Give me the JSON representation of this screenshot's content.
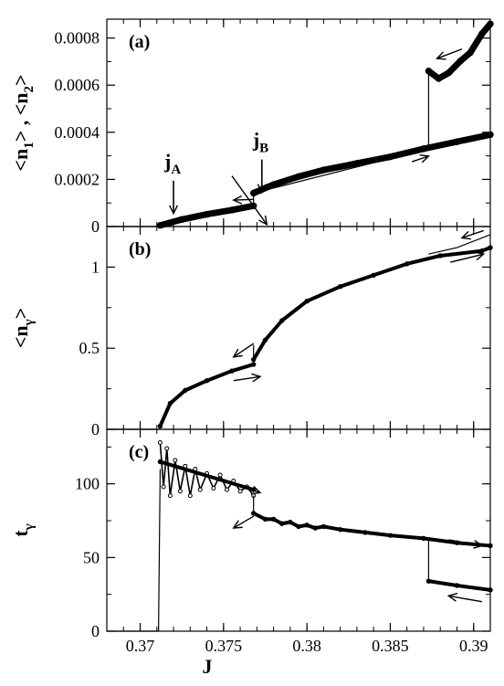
{
  "chart_data": [
    {
      "type": "scatter",
      "panel_label": "(a)",
      "ylabel_parts": [
        "<n",
        "1",
        ">",
        " , ",
        "<n",
        "2",
        ">"
      ],
      "xlim": [
        0.368,
        0.391
      ],
      "ylim": [
        0,
        0.00088
      ],
      "y_ticks": [
        0,
        0.0002,
        0.0004,
        0.0006,
        0.0008
      ],
      "y_tick_labels": [
        "0",
        "0.0002",
        "0.0004",
        "0.0006",
        "0.0008"
      ],
      "annotations": [
        {
          "main": "j",
          "sub": "A",
          "x": 0.372,
          "y": 5.5e-05
        },
        {
          "main": "j",
          "sub": "B",
          "x": 0.3773,
          "y": 0.000145
        }
      ],
      "arrows": [
        {
          "from": [
            0.3755,
            0.000215
          ],
          "to": [
            0.3776,
            8.5e-06
          ],
          "dir": "right"
        },
        {
          "from": [
            0.3768,
            0.000115
          ],
          "to": [
            0.3756,
            0.000112
          ],
          "dir": "left"
        },
        {
          "from": [
            0.3863,
            0.000275
          ],
          "to": [
            0.3873,
            0.000299
          ],
          "dir": "right"
        },
        {
          "from": [
            0.3893,
            0.000753
          ],
          "to": [
            0.3878,
            0.000713
          ],
          "dir": "left"
        }
      ],
      "series": [
        {
          "style": "thin",
          "x": [
            0.368,
            0.3712
          ],
          "y": [
            0,
            0
          ]
        },
        {
          "style": "thick",
          "x": [
            0.3712,
            0.3725,
            0.374,
            0.3755,
            0.3768
          ],
          "y": [
            5e-06,
            3e-05,
            5.2e-05,
            7e-05,
            8.8e-05
          ]
        },
        {
          "style": "thick",
          "x": [
            0.3768,
            0.378,
            0.3795,
            0.381,
            0.383,
            0.385,
            0.387,
            0.389,
            0.391
          ],
          "y": [
            0.000142,
            0.000178,
            0.000212,
            0.00024,
            0.000268,
            0.000296,
            0.00033,
            0.00036,
            0.00039
          ]
        },
        {
          "style": "thick",
          "x": [
            0.3873,
            0.3879,
            0.3885,
            0.3892,
            0.3898,
            0.3905,
            0.391
          ],
          "y": [
            0.00066,
            0.000628,
            0.000652,
            0.000702,
            0.000738,
            0.000818,
            0.00086
          ]
        },
        {
          "style": "thin",
          "x": [
            0.3768,
            0.3768,
            0.3873,
            0.3873
          ],
          "y": [
            8.8e-05,
            0.000142,
            0.00033,
            0.00066
          ]
        }
      ]
    },
    {
      "type": "scatter",
      "panel_label": "(b)",
      "ylabel_parts": [
        "<n",
        "γ",
        ">"
      ],
      "xlim": [
        0.368,
        0.391
      ],
      "ylim": [
        0,
        1.25
      ],
      "y_ticks": [
        0,
        0.5,
        1
      ],
      "y_tick_labels": [
        "0",
        "0.5",
        "1"
      ],
      "arrows": [
        {
          "from": [
            0.3756,
            0.3
          ],
          "to": [
            0.3772,
            0.325
          ],
          "dir": "right"
        },
        {
          "from": [
            0.3768,
            0.529
          ],
          "to": [
            0.3756,
            0.446
          ],
          "dir": "left"
        },
        {
          "from": [
            0.3886,
            1.03
          ],
          "to": [
            0.3906,
            1.08
          ],
          "dir": "right"
        },
        {
          "from": [
            0.3906,
            1.225
          ],
          "to": [
            0.3893,
            1.18
          ],
          "dir": "left"
        }
      ],
      "series": [
        {
          "style": "thin",
          "x": [
            0.368,
            0.3712
          ],
          "y": [
            0,
            0
          ]
        },
        {
          "style": "thick",
          "x": [
            0.3712,
            0.3718,
            0.3727,
            0.374,
            0.3755,
            0.3768
          ],
          "y": [
            0.02,
            0.16,
            0.24,
            0.3,
            0.36,
            0.4
          ]
        },
        {
          "style": "thick",
          "x": [
            0.3768,
            0.3775,
            0.3785,
            0.38,
            0.382,
            0.384,
            0.386,
            0.388,
            0.3905,
            0.391
          ],
          "y": [
            0.43,
            0.55,
            0.67,
            0.79,
            0.88,
            0.95,
            1.02,
            1.07,
            1.1,
            1.12
          ]
        },
        {
          "style": "thin",
          "x": [
            0.3873,
            0.389,
            0.391
          ],
          "y": [
            1.08,
            1.12,
            1.2
          ]
        },
        {
          "style": "thin",
          "x": [
            0.3768,
            0.3768
          ],
          "y": [
            0.4,
            0.52
          ]
        }
      ]
    },
    {
      "type": "scatter",
      "panel_label": "(c)",
      "ylabel_parts": [
        "t",
        "γ"
      ],
      "xlabel": "J",
      "xlim": [
        0.368,
        0.391
      ],
      "ylim": [
        0,
        137
      ],
      "y_ticks": [
        0,
        50,
        100
      ],
      "y_tick_labels": [
        "0",
        "50",
        "100"
      ],
      "x_ticks": [
        0.37,
        0.375,
        0.38,
        0.385,
        0.39
      ],
      "x_tick_labels": [
        "0.37",
        "0.375",
        "0.38",
        "0.385",
        "0.39"
      ],
      "arrows": [
        {
          "from": [
            0.3756,
            100
          ],
          "to": [
            0.3772,
            94
          ],
          "dir": "right"
        },
        {
          "from": [
            0.3768,
            78
          ],
          "to": [
            0.3756,
            70
          ],
          "dir": "left"
        },
        {
          "from": [
            0.3885,
            62
          ],
          "to": [
            0.3905,
            58
          ],
          "dir": "right"
        },
        {
          "from": [
            0.3905,
            20
          ],
          "to": [
            0.3885,
            24
          ],
          "dir": "left"
        }
      ],
      "series": [
        {
          "style": "thin",
          "x": [
            0.368,
            0.3711
          ],
          "y": [
            0,
            0
          ]
        },
        {
          "style": "thin",
          "x": [
            0.3711,
            0.3712
          ],
          "y": [
            0,
            110
          ]
        },
        {
          "style": "jagged",
          "x": [
            0.3712,
            0.3714,
            0.3716,
            0.3718,
            0.3721,
            0.3724,
            0.3727,
            0.373,
            0.3733,
            0.3736,
            0.374,
            0.3744,
            0.3748,
            0.3752,
            0.3756,
            0.376,
            0.3764,
            0.3768
          ],
          "y": [
            128,
            98,
            124,
            92,
            116,
            95,
            112,
            92,
            110,
            96,
            107,
            97,
            106,
            96,
            102,
            95,
            98,
            92
          ]
        },
        {
          "style": "thick",
          "x": [
            0.3712,
            0.3768
          ],
          "y": [
            115,
            96
          ]
        },
        {
          "style": "thin",
          "x": [
            0.3768,
            0.3768
          ],
          "y": [
            92,
            80
          ]
        },
        {
          "style": "thick",
          "x": [
            0.3768,
            0.3775,
            0.378,
            0.3785,
            0.379,
            0.3795,
            0.38,
            0.3805,
            0.381,
            0.382,
            0.3835,
            0.385,
            0.387,
            0.389,
            0.391
          ],
          "y": [
            80,
            76,
            76,
            73,
            74,
            71,
            72,
            70,
            71,
            69,
            67,
            65,
            63,
            60,
            58
          ]
        },
        {
          "style": "thin",
          "x": [
            0.3873,
            0.3873
          ],
          "y": [
            62,
            34
          ]
        },
        {
          "style": "thick",
          "x": [
            0.3873,
            0.389,
            0.391
          ],
          "y": [
            34,
            31,
            28
          ]
        }
      ]
    }
  ]
}
